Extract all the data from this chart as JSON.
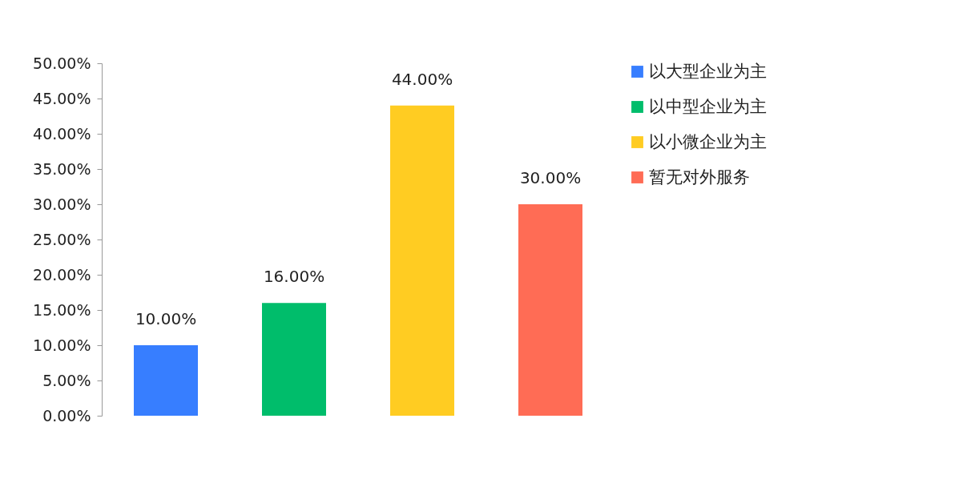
{
  "chart_data": {
    "type": "bar",
    "stacked": true,
    "categories": [
      null,
      null,
      null,
      null
    ],
    "series": [
      {
        "name": "以大型企业为主",
        "color": "#377eff",
        "values": [
          10,
          null,
          null,
          null
        ],
        "value_labels": [
          "10.00%",
          null,
          null,
          null
        ]
      },
      {
        "name": "以中型企业为主",
        "color": "#00bd6b",
        "values": [
          null,
          16,
          null,
          null
        ],
        "value_labels": [
          null,
          "16.00%",
          null,
          null
        ]
      },
      {
        "name": "以小微企业为主",
        "color": "#ffcc22",
        "values": [
          null,
          null,
          44,
          null
        ],
        "value_labels": [
          null,
          null,
          "44.00%",
          null
        ]
      },
      {
        "name": "暂无对外服务",
        "color": "#ff6c55",
        "values": [
          null,
          null,
          null,
          30
        ],
        "value_labels": [
          null,
          null,
          null,
          "30.00%"
        ]
      }
    ],
    "ylim": [
      0,
      50
    ],
    "yticks": [
      {
        "value": 0,
        "label": "0.00%"
      },
      {
        "value": 5,
        "label": "5.00%"
      },
      {
        "value": 10,
        "label": "10.00%"
      },
      {
        "value": 15,
        "label": "15.00%"
      },
      {
        "value": 20,
        "label": "20.00%"
      },
      {
        "value": 25,
        "label": "25.00%"
      },
      {
        "value": 30,
        "label": "30.00%"
      },
      {
        "value": 35,
        "label": "35.00%"
      },
      {
        "value": 40,
        "label": "40.00%"
      },
      {
        "value": 45,
        "label": "45.00%"
      },
      {
        "value": 50,
        "label": "50.00%"
      }
    ],
    "tick_labels": "y",
    "grid": false,
    "legend": "right"
  }
}
